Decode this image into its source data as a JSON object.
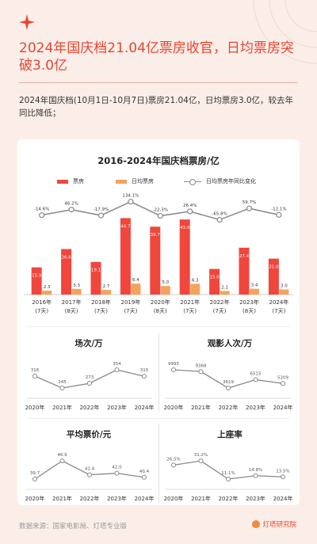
{
  "header": {
    "title": "2024年国庆档21.04亿票房收官，日均票房突破3.0亿",
    "intro": "2024年国庆档(10月1日-10月7日)票房21.04亿，日均票房3.0亿，较去年同比降低；"
  },
  "colors": {
    "accent": "#e8452f",
    "bar_red": "#f0463c",
    "bar_orange": "#f5a25c",
    "line": "#888888"
  },
  "chart_data": [
    {
      "type": "bar",
      "title": "2016-2024年国庆档票房/亿",
      "categories": [
        "2016年\n(7天)",
        "2017年\n(8天)",
        "2018年\n(7天)",
        "2019年\n(7天)",
        "2020年\n(8天)",
        "2021年\n(7天)",
        "2022年\n(7天)",
        "2023年\n(8天)",
        "2024年\n(7天)"
      ],
      "series": [
        {
          "name": "票房",
          "values": [
            15.9,
            26.6,
            19.1,
            44.7,
            39.7,
            43.9,
            15.0,
            27.4,
            21.0
          ],
          "labels": [
            "15.9",
            "26.6",
            "19.1",
            "44.7",
            "39.7",
            "43.9",
            "15.0",
            "27.4",
            "21.0"
          ]
        },
        {
          "name": "日均票房",
          "values": [
            2.3,
            3.3,
            2.7,
            6.4,
            5.0,
            6.3,
            2.1,
            3.4,
            3.0
          ],
          "labels": [
            "2.3",
            "3.3",
            "2.7",
            "6.4",
            "5.0",
            "6.3",
            "2.1",
            "3.4",
            "3.0"
          ]
        },
        {
          "name": "日均票房年同比变化",
          "type": "line",
          "values": [
            -14.6,
            46.2,
            -17.9,
            134.1,
            -22.3,
            26.4,
            -65.8,
            59.7,
            -12.1
          ],
          "labels": [
            "-14.6%",
            "46.2%",
            "-17.9%",
            "134.1%",
            "-22.3%",
            "26.4%",
            "-65.8%",
            "59.7%",
            "-12.1%"
          ]
        }
      ],
      "legend": "top"
    },
    {
      "type": "line",
      "title": "场次/万",
      "categories": [
        "2020年",
        "2021年",
        "2022年",
        "2023年",
        "2024年"
      ],
      "values": [
        316,
        245,
        273,
        354,
        315
      ],
      "labels": [
        "316",
        "245",
        "273",
        "354",
        "315"
      ]
    },
    {
      "type": "line",
      "title": "观影人次/万",
      "categories": [
        "2020年",
        "2021年",
        "2022年",
        "2023年",
        "2024年"
      ],
      "values": [
        9995,
        9368,
        3619,
        6515,
        5209
      ],
      "labels": [
        "9995",
        "9368",
        "3619",
        "6515",
        "5209"
      ]
    },
    {
      "type": "line",
      "title": "平均票价/元",
      "categories": [
        "2020年",
        "2021年",
        "2022年",
        "2023年",
        "2024年"
      ],
      "values": [
        39.7,
        46.9,
        41.4,
        42.0,
        40.4
      ],
      "labels": [
        "39.7",
        "46.9",
        "41.4",
        "42.0",
        "40.4"
      ]
    },
    {
      "type": "line",
      "title": "上座率",
      "categories": [
        "2020年",
        "2021年",
        "2022年",
        "2023年",
        "2024年"
      ],
      "values": [
        26.5,
        31.2,
        11.1,
        14.8,
        13.5
      ],
      "labels": [
        "26.5%",
        "31.2%",
        "11.1%",
        "14.8%",
        "13.5%"
      ]
    }
  ],
  "footer": {
    "source": "数据来源：国家电影局、灯塔专业版",
    "brand": "灯塔研究院"
  }
}
